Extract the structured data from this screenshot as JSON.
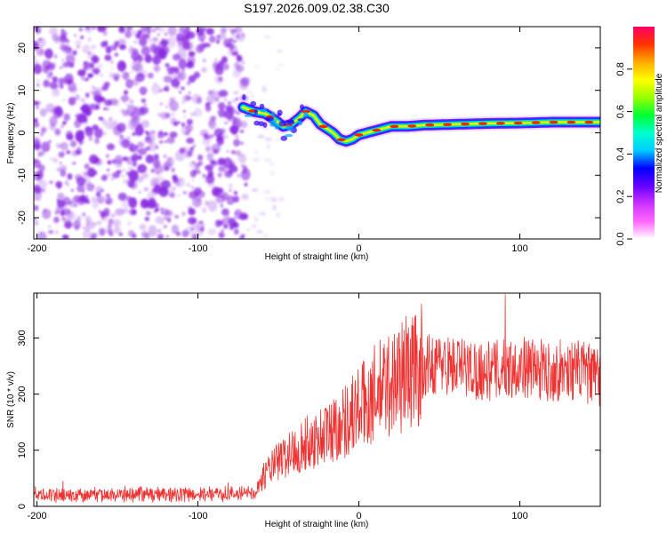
{
  "title": "S197.2026.009.02.38.C30",
  "colors": {
    "snr_line": "#ee3333",
    "noise": "#8a2be2",
    "colorbar": [
      "#ffffff",
      "#ff66ff",
      "#cc33ff",
      "#6600ff",
      "#0000ff",
      "#00ccff",
      "#00ffcc",
      "#00ff33",
      "#99ff00",
      "#ffff00",
      "#ffaa00",
      "#ff3300",
      "#ff0066"
    ]
  },
  "chart_data": [
    {
      "type": "heatmap",
      "name": "spectrogram",
      "xlabel": "Height of straight line (km)",
      "ylabel": "Frequency (Hz)",
      "xlim": [
        -202,
        150
      ],
      "ylim": [
        -25,
        25
      ],
      "xticks": [
        -200,
        -100,
        0,
        100
      ],
      "yticks": [
        -20,
        -10,
        0,
        10,
        20
      ],
      "xtick_labels": [
        "-200",
        "-100",
        "0",
        "100"
      ],
      "ytick_labels": [
        "-20",
        "-10",
        "0",
        "10",
        "20"
      ],
      "noise_region_x": [
        -202,
        -70
      ],
      "ridge": {
        "x": [
          -72,
          -65,
          -58,
          -52,
          -47,
          -42,
          -37,
          -33,
          -28,
          -24,
          -20,
          -16,
          -12,
          -8,
          -4,
          0,
          5,
          10,
          15,
          20,
          30,
          40,
          60,
          80,
          100,
          120,
          150
        ],
        "y": [
          6,
          5,
          4.5,
          3,
          1.5,
          2,
          3.5,
          5,
          4,
          2,
          1,
          0,
          -1.5,
          -2,
          -1.5,
          -0.5,
          0,
          0.5,
          1,
          1.5,
          1.5,
          1.8,
          2,
          2.2,
          2.3,
          2.5,
          2.5
        ]
      },
      "colorbar": {
        "label": "Normalized spectral amplitude",
        "range": [
          0.0,
          1.0
        ],
        "ticks": [
          0.0,
          0.2,
          0.4,
          0.6,
          0.8
        ],
        "tick_labels": [
          "0.0",
          "0.2",
          "0.4",
          "0.6",
          "0.8"
        ]
      }
    },
    {
      "type": "line",
      "name": "snr",
      "xlabel": "Height of straight line (km)",
      "ylabel": "SNR (10 * v/v)",
      "xlim": [
        -202,
        150
      ],
      "ylim": [
        0,
        380
      ],
      "xticks": [
        -200,
        -100,
        0,
        100
      ],
      "yticks": [
        0,
        100,
        200,
        300
      ],
      "xtick_labels": [
        "-200",
        "-100",
        "0",
        "100"
      ],
      "ytick_labels": [
        "0",
        "100",
        "200",
        "300"
      ],
      "trend": {
        "x": [
          -202,
          -65,
          -58,
          -50,
          -40,
          -30,
          -20,
          -10,
          0,
          10,
          20,
          30,
          40,
          50,
          60,
          70,
          80,
          90,
          100,
          110,
          120,
          130,
          140,
          150
        ],
        "y": [
          20,
          22,
          60,
          80,
          100,
          115,
          130,
          150,
          175,
          200,
          220,
          240,
          250,
          255,
          250,
          245,
          240,
          245,
          250,
          245,
          240,
          245,
          240,
          225
        ]
      },
      "peak": {
        "x": 91,
        "y": 378
      }
    }
  ]
}
